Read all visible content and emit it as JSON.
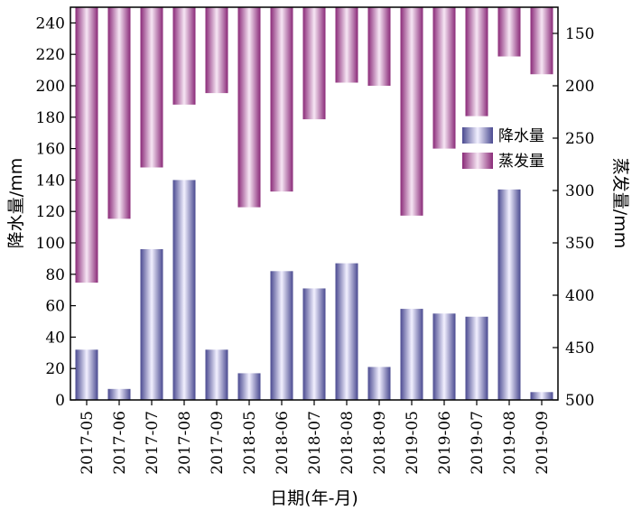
{
  "chart_data": {
    "type": "bar",
    "categories": [
      "2017-05",
      "2017-06",
      "2017-07",
      "2017-08",
      "2017-09",
      "2018-05",
      "2018-06",
      "2018-07",
      "2018-08",
      "2018-09",
      "2019-05",
      "2019-06",
      "2019-07",
      "2019-08",
      "2019-09"
    ],
    "series": [
      {
        "name": "降水量",
        "axis": "left",
        "color_light": "#f2f0ff",
        "color_dark": "#4a4a90",
        "values": [
          32,
          7,
          96,
          140,
          32,
          17,
          82,
          71,
          87,
          21,
          58,
          55,
          53,
          134,
          5
        ]
      },
      {
        "name": "蒸发量",
        "axis": "right",
        "inverted": true,
        "color_light": "#f6e6f4",
        "color_dark": "#8a2a78",
        "values": [
          388,
          327,
          278,
          218,
          207,
          316,
          301,
          232,
          197,
          200,
          324,
          260,
          229,
          172,
          189
        ]
      }
    ],
    "xlabel": "日期(年-月)",
    "ylabel": "降水量/mm",
    "ylabel_right": "蒸发量/mm",
    "ylim": [
      0,
      250
    ],
    "yticks": [
      0,
      20,
      40,
      60,
      80,
      100,
      120,
      140,
      160,
      180,
      200,
      220,
      240
    ],
    "ylim_right": [
      500,
      125
    ],
    "yticks_right": [
      150,
      200,
      250,
      300,
      350,
      400,
      450,
      500
    ],
    "legend_position": "right",
    "grid": false
  }
}
